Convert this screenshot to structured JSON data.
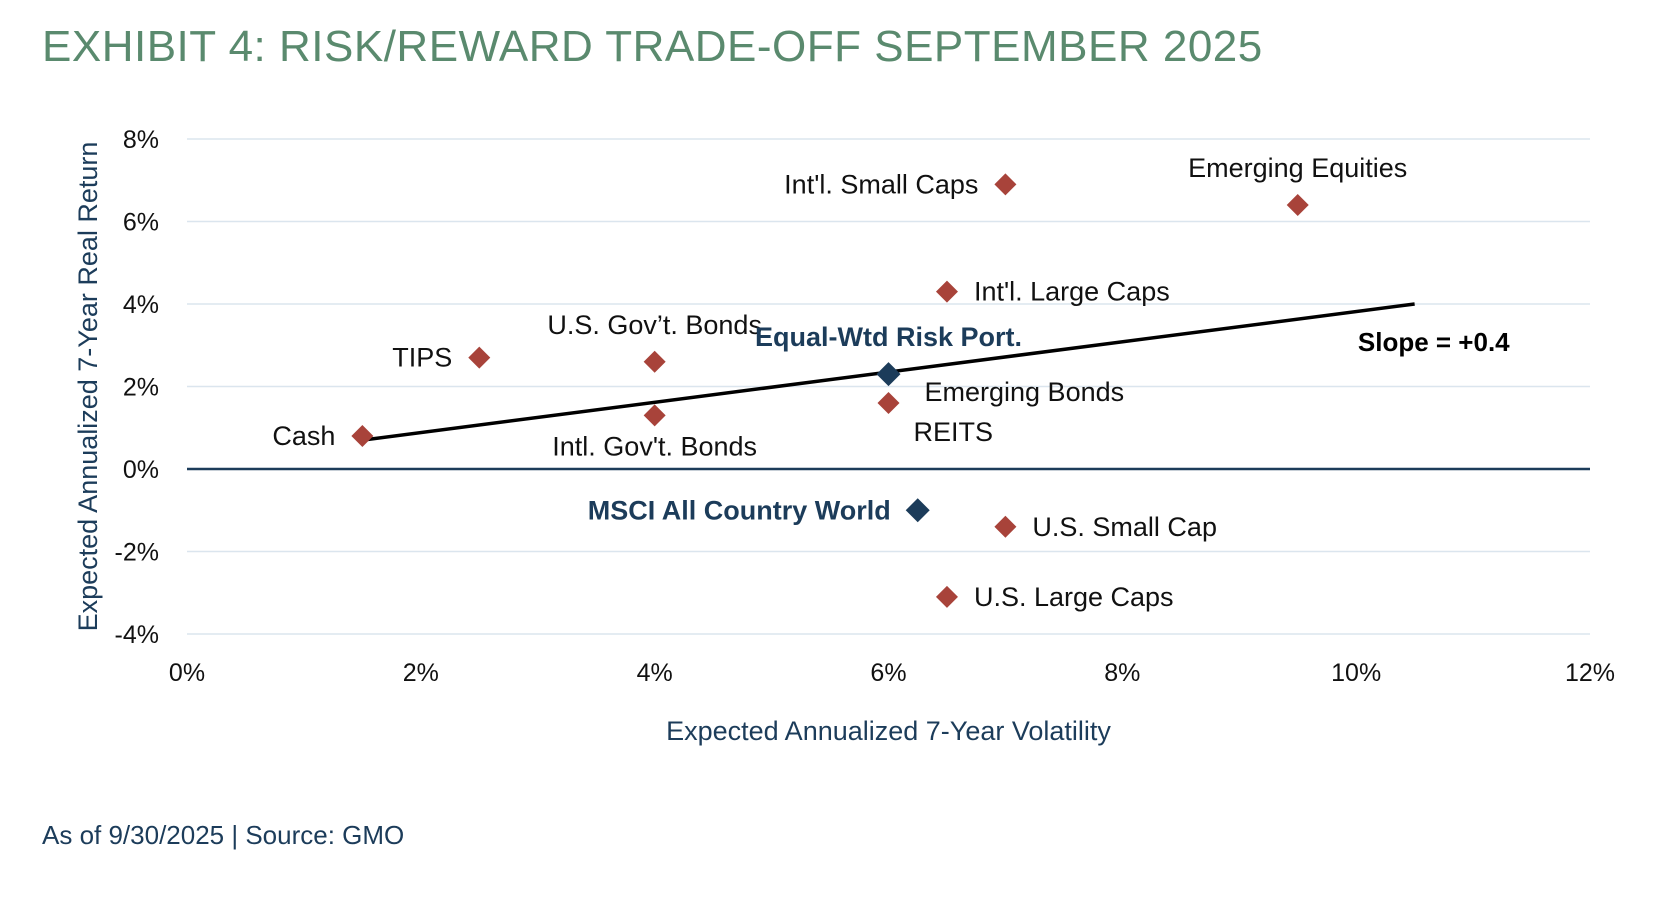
{
  "title": "EXHIBIT 4: RISK/REWARD TRADE-OFF SEPTEMBER 2025",
  "footer": "As of 9/30/2025 | Source: GMO",
  "colors": {
    "title": "#5a8a6e",
    "axis_text": "#1c3c5a",
    "asset_marker": "#a8433a",
    "portfolio_marker": "#1c3c5a",
    "gridline": "#dbe5ee",
    "zero_line": "#1c3c5a",
    "trend_line": "#000000"
  },
  "chart_data": {
    "type": "scatter",
    "xlabel": "Expected Annualized 7-Year Volatility",
    "ylabel": "Expected Annualized 7-Year Real Return",
    "xlim": [
      0,
      12
    ],
    "ylim": [
      -4,
      8
    ],
    "xticks": [
      0,
      2,
      4,
      6,
      8,
      10,
      12
    ],
    "yticks": [
      -4,
      -2,
      0,
      2,
      4,
      6,
      8
    ],
    "xtick_labels": [
      "0%",
      "2%",
      "4%",
      "6%",
      "8%",
      "10%",
      "12%"
    ],
    "ytick_labels": [
      "-4%",
      "-2%",
      "0%",
      "2%",
      "4%",
      "6%",
      "8%"
    ],
    "grid": true,
    "points": [
      {
        "label": "Cash",
        "x": 1.5,
        "y": 0.8,
        "kind": "asset",
        "label_pos": "left"
      },
      {
        "label": "TIPS",
        "x": 2.5,
        "y": 2.7,
        "kind": "asset",
        "label_pos": "left"
      },
      {
        "label": "U.S. Gov’t. Bonds",
        "x": 4.0,
        "y": 2.6,
        "kind": "asset",
        "label_pos": "above"
      },
      {
        "label": "Intl. Gov't. Bonds",
        "x": 4.0,
        "y": 1.3,
        "kind": "asset",
        "label_pos": "below"
      },
      {
        "label": "Emerging Bonds",
        "x": 6.0,
        "y": 1.6,
        "kind": "asset",
        "label_pos": "upper-right"
      },
      {
        "label": "REITS",
        "x": 6.0,
        "y": 1.6,
        "kind": "asset",
        "label_pos": "lower-right"
      },
      {
        "label": "Int'l. Large Caps",
        "x": 6.5,
        "y": 4.3,
        "kind": "asset",
        "label_pos": "right"
      },
      {
        "label": "Int'l. Small Caps",
        "x": 7.0,
        "y": 6.9,
        "kind": "asset",
        "label_pos": "left"
      },
      {
        "label": "Emerging Equities",
        "x": 9.5,
        "y": 6.4,
        "kind": "asset",
        "label_pos": "above"
      },
      {
        "label": "U.S. Small Cap",
        "x": 7.0,
        "y": -1.4,
        "kind": "asset",
        "label_pos": "right"
      },
      {
        "label": "U.S. Large Caps",
        "x": 6.5,
        "y": -3.1,
        "kind": "asset",
        "label_pos": "right"
      },
      {
        "label": "Equal-Wtd Risk Port.",
        "x": 6.0,
        "y": 2.3,
        "kind": "portfolio",
        "label_pos": "above"
      },
      {
        "label": "MSCI All Country World",
        "x": 6.25,
        "y": -1.0,
        "kind": "portfolio",
        "label_pos": "left"
      }
    ],
    "trend_line": {
      "x1": 1.5,
      "y1": 0.7,
      "x2": 10.5,
      "y2": 4.0,
      "label": "Slope = +0.4"
    }
  }
}
